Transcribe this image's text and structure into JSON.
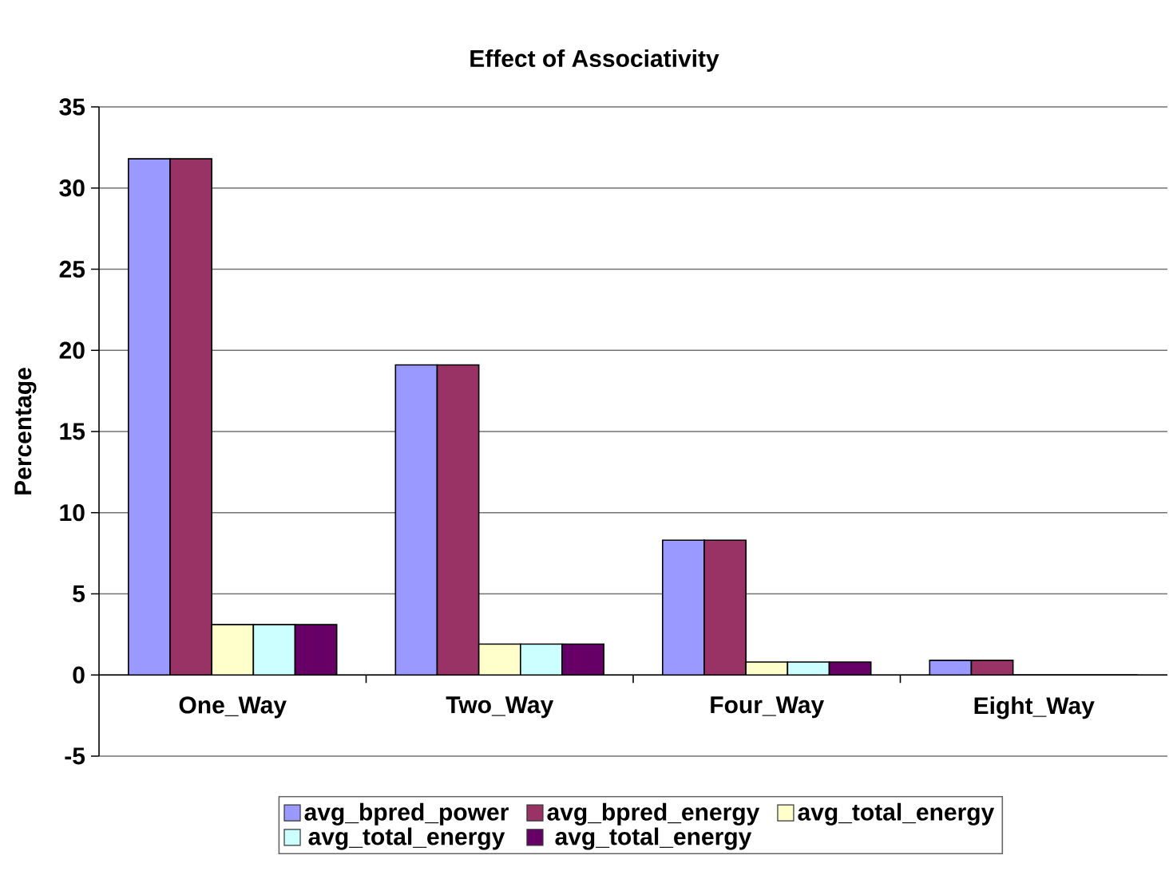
{
  "chart_data": {
    "type": "bar",
    "title": "Effect of Associativity",
    "ylabel": "Percentage",
    "categories": [
      "One_Way",
      "Two_Way",
      "Four_Way",
      "Eight_Way"
    ],
    "series": [
      {
        "name": "avg_bpred_power",
        "color": "#9999ff",
        "values": [
          31.8,
          19.1,
          8.3,
          0.9
        ]
      },
      {
        "name": "avg_bpred_energy",
        "color": "#993366",
        "values": [
          31.8,
          19.1,
          8.3,
          0.9
        ]
      },
      {
        "name": "avg_total_energy",
        "color": "#ffffcc",
        "values": [
          3.1,
          1.9,
          0.8,
          0
        ]
      },
      {
        "name": "avg_total_energy",
        "color": "#ccffff",
        "values": [
          3.1,
          1.9,
          0.8,
          0
        ]
      },
      {
        "name": "avg_total_energy",
        "color": "#660066",
        "values": [
          3.1,
          1.9,
          0.8,
          0
        ]
      }
    ],
    "ylim": [
      -5,
      35
    ],
    "yticks": [
      -5,
      0,
      5,
      10,
      15,
      20,
      25,
      30,
      35
    ],
    "grid": "y",
    "legend": "bottom"
  }
}
